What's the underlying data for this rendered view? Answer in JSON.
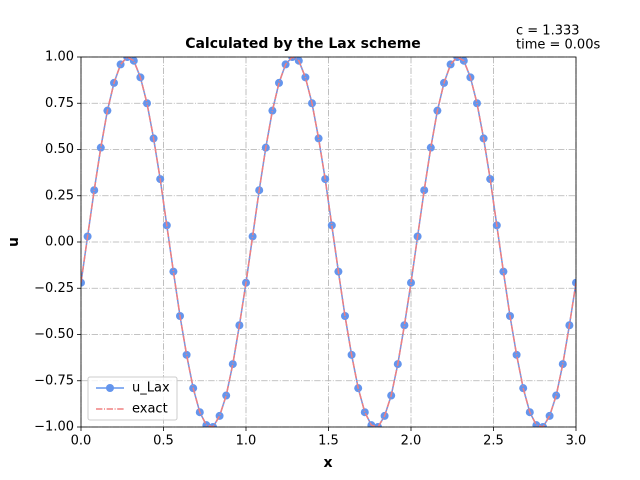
{
  "chart_data": {
    "type": "line",
    "title": "Calculated by the Lax scheme",
    "annotations": [
      "c = 1.333",
      "time = 0.00s"
    ],
    "xlabel": "x",
    "ylabel": "u",
    "x": [
      0,
      0.04,
      0.08,
      0.12,
      0.16,
      0.2,
      0.24,
      0.28,
      0.32,
      0.36,
      0.4,
      0.44,
      0.48,
      0.52,
      0.56,
      0.6,
      0.64,
      0.68,
      0.72,
      0.76,
      0.8,
      0.84,
      0.88,
      0.92,
      0.96,
      1,
      1.04,
      1.08,
      1.12,
      1.16,
      1.2,
      1.24,
      1.28,
      1.32,
      1.36,
      1.4,
      1.44,
      1.48,
      1.52,
      1.56,
      1.6,
      1.64,
      1.68,
      1.72,
      1.76,
      1.8,
      1.84,
      1.88,
      1.92,
      1.96,
      2,
      2.04,
      2.08,
      2.12,
      2.16,
      2.2,
      2.24,
      2.28,
      2.32,
      2.36,
      2.4,
      2.44,
      2.48,
      2.52,
      2.56,
      2.6,
      2.64,
      2.68,
      2.72,
      2.76,
      2.8,
      2.84,
      2.88,
      2.92,
      2.96,
      3
    ],
    "series": [
      {
        "name": "u_Lax",
        "color": "#6495ed",
        "marker": "o",
        "linestyle": "solid",
        "values": [
          -0.22,
          0.03,
          0.28,
          0.51,
          0.71,
          0.86,
          0.96,
          1.0,
          0.98,
          0.89,
          0.75,
          0.56,
          0.34,
          0.09,
          -0.16,
          -0.4,
          -0.61,
          -0.79,
          -0.92,
          -0.99,
          -1.0,
          -0.94,
          -0.83,
          -0.66,
          -0.45,
          -0.22,
          0.03,
          0.28,
          0.51,
          0.71,
          0.86,
          0.96,
          1.0,
          0.98,
          0.89,
          0.75,
          0.56,
          0.34,
          0.09,
          -0.16,
          -0.4,
          -0.61,
          -0.79,
          -0.92,
          -0.99,
          -1.0,
          -0.94,
          -0.83,
          -0.66,
          -0.45,
          -0.22,
          0.03,
          0.28,
          0.51,
          0.71,
          0.86,
          0.96,
          1.0,
          0.98,
          0.89,
          0.75,
          0.56,
          0.34,
          0.09,
          -0.16,
          -0.4,
          -0.61,
          -0.79,
          -0.92,
          -0.99,
          -1.0,
          -0.94,
          -0.83,
          -0.66,
          -0.45,
          -0.22
        ]
      },
      {
        "name": "exact",
        "color": "#f08080",
        "marker": null,
        "linestyle": "dashdot",
        "values": [
          -0.22,
          0.03,
          0.28,
          0.51,
          0.71,
          0.86,
          0.96,
          1.0,
          0.98,
          0.89,
          0.75,
          0.56,
          0.34,
          0.09,
          -0.16,
          -0.4,
          -0.61,
          -0.79,
          -0.92,
          -0.99,
          -1.0,
          -0.94,
          -0.83,
          -0.66,
          -0.45,
          -0.22,
          0.03,
          0.28,
          0.51,
          0.71,
          0.86,
          0.96,
          1.0,
          0.98,
          0.89,
          0.75,
          0.56,
          0.34,
          0.09,
          -0.16,
          -0.4,
          -0.61,
          -0.79,
          -0.92,
          -0.99,
          -1.0,
          -0.94,
          -0.83,
          -0.66,
          -0.45,
          -0.22,
          0.03,
          0.28,
          0.51,
          0.71,
          0.86,
          0.96,
          1.0,
          0.98,
          0.89,
          0.75,
          0.56,
          0.34,
          0.09,
          -0.16,
          -0.4,
          -0.61,
          -0.79,
          -0.92,
          -0.99,
          -1.0,
          -0.94,
          -0.83,
          -0.66,
          -0.45,
          -0.22
        ]
      }
    ],
    "xlim": [
      0,
      3
    ],
    "ylim": [
      -1,
      1
    ],
    "xticks": [
      {
        "value": 0,
        "label": "0.0"
      },
      {
        "value": 0.5,
        "label": "0.5"
      },
      {
        "value": 1,
        "label": "1.0"
      },
      {
        "value": 1.5,
        "label": "1.5"
      },
      {
        "value": 2,
        "label": "2.0"
      },
      {
        "value": 2.5,
        "label": "2.5"
      },
      {
        "value": 3,
        "label": "3.0"
      }
    ],
    "yticks": [
      {
        "value": -1,
        "label": "−1.00"
      },
      {
        "value": -0.75,
        "label": "−0.75"
      },
      {
        "value": -0.5,
        "label": "−0.50"
      },
      {
        "value": -0.25,
        "label": "−0.25"
      },
      {
        "value": 0,
        "label": "0.00"
      },
      {
        "value": 0.25,
        "label": "0.25"
      },
      {
        "value": 0.5,
        "label": "0.50"
      },
      {
        "value": 0.75,
        "label": "0.75"
      },
      {
        "value": 1,
        "label": "1.00"
      }
    ],
    "grid": true,
    "legend": "lower left"
  }
}
